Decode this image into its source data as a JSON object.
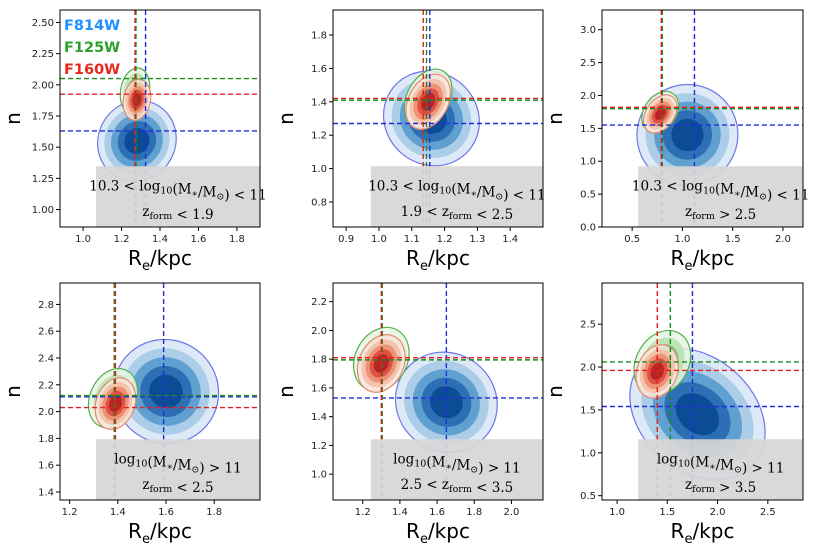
{
  "chart_data": [
    {
      "type": "contour",
      "xlabel": "R",
      "xlabel_sub": "e",
      "xlabel_tail": "/kpc",
      "ylabel": "n",
      "xlim": [
        0.88,
        1.92
      ],
      "ylim": [
        0.86,
        2.6
      ],
      "xticks": [
        1.0,
        1.2,
        1.4,
        1.6,
        1.8
      ],
      "xtick_labels": [
        "1.0",
        "1.2",
        "1.4",
        "1.6",
        "1.8"
      ],
      "yticks": [
        1.0,
        1.25,
        1.5,
        1.75,
        2.0,
        2.25,
        2.5
      ],
      "ytick_labels": [
        "1.00",
        "1.25",
        "1.50",
        "1.75",
        "2.00",
        "2.25",
        "2.50"
      ],
      "annotation": {
        "line1_pre": "10.3 < log",
        "line1_sub": "10",
        "line1_mid": "(M",
        "line1_sub2": "∗",
        "line1_mid2": "/M",
        "line1_sub3": "⊙",
        "line1_post": ") < 11",
        "line2_pre": "z",
        "line2_sub": "form",
        "line2_post": " < 1.9"
      },
      "series": [
        {
          "name": "F814W",
          "center": [
            1.28,
            1.55
          ],
          "median_x": 1.325,
          "median_y": 1.63
        },
        {
          "name": "F125W",
          "center": [
            1.27,
            1.95
          ],
          "median_x": 1.275,
          "median_y": 2.05
        },
        {
          "name": "F160W",
          "center": [
            1.28,
            1.88
          ],
          "median_x": 1.27,
          "median_y": 1.925
        }
      ]
    },
    {
      "type": "contour",
      "xlabel": "R",
      "xlabel_sub": "e",
      "xlabel_tail": "/kpc",
      "ylabel": "n",
      "xlim": [
        0.86,
        1.5
      ],
      "ylim": [
        0.65,
        1.95
      ],
      "xticks": [
        0.9,
        1.0,
        1.1,
        1.2,
        1.3,
        1.4
      ],
      "xtick_labels": [
        "0.9",
        "1.0",
        "1.1",
        "1.2",
        "1.3",
        "1.4"
      ],
      "yticks": [
        0.8,
        1.0,
        1.2,
        1.4,
        1.6,
        1.8
      ],
      "ytick_labels": [
        "0.8",
        "1.0",
        "1.2",
        "1.4",
        "1.6",
        "1.8"
      ],
      "annotation": {
        "line1_pre": "10.3 < log",
        "line1_sub": "10",
        "line1_mid": "(M",
        "line1_sub2": "∗",
        "line1_mid2": "/M",
        "line1_sub3": "⊙",
        "line1_post": ") < 11",
        "line2_pre": "1.9 < z",
        "line2_sub": "form",
        "line2_post": " < 2.5"
      },
      "series": [
        {
          "name": "F814W",
          "center": [
            1.16,
            1.3
          ],
          "median_x": 1.155,
          "median_y": 1.27
        },
        {
          "name": "F125W",
          "center": [
            1.15,
            1.42
          ],
          "median_x": 1.145,
          "median_y": 1.41
        },
        {
          "name": "F160W",
          "center": [
            1.15,
            1.4
          ],
          "median_x": 1.135,
          "median_y": 1.42
        }
      ]
    },
    {
      "type": "contour",
      "xlabel": "R",
      "xlabel_sub": "e",
      "xlabel_tail": "/kpc",
      "ylabel": "n",
      "xlim": [
        0.2,
        2.2
      ],
      "ylim": [
        0.0,
        3.3
      ],
      "xticks": [
        0.5,
        1.0,
        1.5,
        2.0
      ],
      "xtick_labels": [
        "0.5",
        "1.0",
        "1.5",
        "2.0"
      ],
      "yticks": [
        0.0,
        0.5,
        1.0,
        1.5,
        2.0,
        2.5,
        3.0
      ],
      "ytick_labels": [
        "0.0",
        "0.5",
        "1.0",
        "1.5",
        "2.0",
        "2.5",
        "3.0"
      ],
      "annotation": {
        "line1_pre": "10.3 < log",
        "line1_sub": "10",
        "line1_mid": "(M",
        "line1_sub2": "∗",
        "line1_mid2": "/M",
        "line1_sub3": "⊙",
        "line1_post": ") < 11",
        "line2_pre": "z",
        "line2_sub": "form",
        "line2_post": " > 2.5"
      },
      "series": [
        {
          "name": "F814W",
          "center": [
            1.05,
            1.4
          ],
          "median_x": 1.12,
          "median_y": 1.55
        },
        {
          "name": "F125W",
          "center": [
            0.78,
            1.75
          ],
          "median_x": 0.8,
          "median_y": 1.8
        },
        {
          "name": "F160W",
          "center": [
            0.78,
            1.72
          ],
          "median_x": 0.79,
          "median_y": 1.82
        }
      ]
    },
    {
      "type": "contour",
      "xlabel": "R",
      "xlabel_sub": "e",
      "xlabel_tail": "/kpc",
      "ylabel": "n",
      "xlim": [
        1.16,
        1.99
      ],
      "ylim": [
        1.34,
        2.96
      ],
      "xticks": [
        1.2,
        1.4,
        1.6,
        1.8
      ],
      "xtick_labels": [
        "1.2",
        "1.4",
        "1.6",
        "1.8"
      ],
      "yticks": [
        1.4,
        1.6,
        1.8,
        2.0,
        2.2,
        2.4,
        2.6,
        2.8
      ],
      "ytick_labels": [
        "1.4",
        "1.6",
        "1.8",
        "2.0",
        "2.2",
        "2.4",
        "2.6",
        "2.8"
      ],
      "annotation": {
        "line1_pre": "log",
        "line1_sub": "10",
        "line1_mid": "(M",
        "line1_sub2": "∗",
        "line1_mid2": "/M",
        "line1_sub3": "⊙",
        "line1_post": ") > 11",
        "line2_pre": "z",
        "line2_sub": "form",
        "line2_post": " < 2.5"
      },
      "series": [
        {
          "name": "F814W",
          "center": [
            1.6,
            2.15
          ],
          "median_x": 1.59,
          "median_y": 2.11
        },
        {
          "name": "F125W",
          "center": [
            1.38,
            2.1
          ],
          "median_x": 1.385,
          "median_y": 2.12
        },
        {
          "name": "F160W",
          "center": [
            1.39,
            2.06
          ],
          "median_x": 1.39,
          "median_y": 2.03
        }
      ]
    },
    {
      "type": "contour",
      "xlabel": "R",
      "xlabel_sub": "e",
      "xlabel_tail": "/kpc",
      "ylabel": "n",
      "xlim": [
        1.04,
        2.17
      ],
      "ylim": [
        0.82,
        2.33
      ],
      "xticks": [
        1.2,
        1.4,
        1.6,
        1.8,
        2.0
      ],
      "xtick_labels": [
        "1.2",
        "1.4",
        "1.6",
        "1.8",
        "2.0"
      ],
      "yticks": [
        1.0,
        1.2,
        1.4,
        1.6,
        1.8,
        2.0,
        2.2
      ],
      "ytick_labels": [
        "1.0",
        "1.2",
        "1.4",
        "1.6",
        "1.8",
        "2.0",
        "2.2"
      ],
      "annotation": {
        "line1_pre": "log",
        "line1_sub": "10",
        "line1_mid": "(M",
        "line1_sub2": "∗",
        "line1_mid2": "/M",
        "line1_sub3": "⊙",
        "line1_post": ") > 11",
        "line2_pre": "2.5 < z",
        "line2_sub": "form",
        "line2_post": " < 3.5"
      },
      "series": [
        {
          "name": "F814W",
          "center": [
            1.65,
            1.5
          ],
          "median_x": 1.65,
          "median_y": 1.53
        },
        {
          "name": "F125W",
          "center": [
            1.3,
            1.8
          ],
          "median_x": 1.305,
          "median_y": 1.795
        },
        {
          "name": "F160W",
          "center": [
            1.3,
            1.77
          ],
          "median_x": 1.3,
          "median_y": 1.81
        }
      ]
    },
    {
      "type": "contour",
      "xlabel": "R",
      "xlabel_sub": "e",
      "xlabel_tail": "/kpc",
      "ylabel": "n",
      "xlim": [
        0.85,
        2.85
      ],
      "ylim": [
        0.45,
        2.98
      ],
      "xticks": [
        1.0,
        1.5,
        2.0,
        2.5
      ],
      "xtick_labels": [
        "1.0",
        "1.5",
        "2.0",
        "2.5"
      ],
      "yticks": [
        0.5,
        1.0,
        1.5,
        2.0,
        2.5
      ],
      "ytick_labels": [
        "0.5",
        "1.0",
        "1.5",
        "2.0",
        "2.5"
      ],
      "annotation": {
        "line1_pre": "log",
        "line1_sub": "10",
        "line1_mid": "(M",
        "line1_sub2": "∗",
        "line1_mid2": "/M",
        "line1_sub3": "⊙",
        "line1_post": ") > 11",
        "line2_pre": "z",
        "line2_sub": "form",
        "line2_post": " > 3.5"
      },
      "series": [
        {
          "name": "F814W",
          "center": [
            1.8,
            1.45
          ],
          "median_x": 1.75,
          "median_y": 1.54
        },
        {
          "name": "F125W",
          "center": [
            1.45,
            2.05
          ],
          "median_x": 1.53,
          "median_y": 2.06
        },
        {
          "name": "F160W",
          "center": [
            1.4,
            1.95
          ],
          "median_x": 1.4,
          "median_y": 1.96
        }
      ]
    }
  ],
  "legend": [
    {
      "label": "F814W",
      "color": "#1e90ff"
    },
    {
      "label": "F125W",
      "color": "#2ca02c"
    },
    {
      "label": "F160W",
      "color": "#e8281c"
    }
  ],
  "colors": {
    "F814W": {
      "line": "#1f2fd8",
      "fills": [
        "#dbe8f6",
        "#a8cbe6",
        "#5b9dd0",
        "#2a6db2",
        "#0b4a92"
      ],
      "outline": "#6b76e8"
    },
    "F125W": {
      "line": "#1e8a1e",
      "fills": [
        "#e6f4e3",
        "#b6e0ae",
        "#70c26a",
        "#2e9a3a"
      ],
      "outline": "#57b04d"
    },
    "F160W": {
      "line": "#e02020",
      "fills": [
        "#fbe7df",
        "#f5bca5",
        "#ec8a6c",
        "#d9463a",
        "#b01c20"
      ],
      "outline": "#e88a70"
    },
    "annotation_box": "#d6d6d6"
  }
}
